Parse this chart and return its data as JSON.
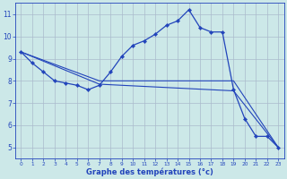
{
  "line1": {
    "x": [
      0,
      1,
      2,
      3,
      4,
      5,
      6,
      7,
      8,
      9,
      10,
      11,
      12,
      13,
      14,
      15,
      16,
      17,
      18,
      19,
      20,
      21,
      22,
      23
    ],
    "y": [
      9.3,
      8.8,
      8.4,
      8.0,
      7.9,
      7.8,
      7.6,
      7.8,
      8.4,
      9.1,
      9.6,
      9.8,
      10.1,
      10.5,
      10.7,
      11.2,
      10.4,
      10.2,
      10.2,
      7.6,
      6.3,
      5.5,
      5.5,
      5.0
    ],
    "color": "#2244bb",
    "markersize": 2.2,
    "linewidth": 0.9
  },
  "line2": {
    "x": [
      0,
      7,
      19,
      23
    ],
    "y": [
      9.3,
      7.85,
      7.55,
      5.0
    ],
    "color": "#2244bb",
    "linewidth": 0.8
  },
  "line3": {
    "x": [
      0,
      7,
      19,
      23
    ],
    "y": [
      9.3,
      8.0,
      8.0,
      5.0
    ],
    "color": "#2244bb",
    "linewidth": 0.8
  },
  "background_color": "#cce8e8",
  "grid_color": "#aabbcc",
  "xlim": [
    -0.5,
    23.5
  ],
  "ylim": [
    4.5,
    11.5
  ],
  "xticks": [
    0,
    1,
    2,
    3,
    4,
    5,
    6,
    7,
    8,
    9,
    10,
    11,
    12,
    13,
    14,
    15,
    16,
    17,
    18,
    19,
    20,
    21,
    22,
    23
  ],
  "yticks": [
    5,
    6,
    7,
    8,
    9,
    10,
    11
  ],
  "xlabel": "Graphe des températures (°c)",
  "xlabel_color": "#2244bb",
  "tick_color": "#2244bb",
  "tick_fontsize_x": 4.2,
  "tick_fontsize_y": 5.5,
  "xlabel_fontsize": 6.0
}
